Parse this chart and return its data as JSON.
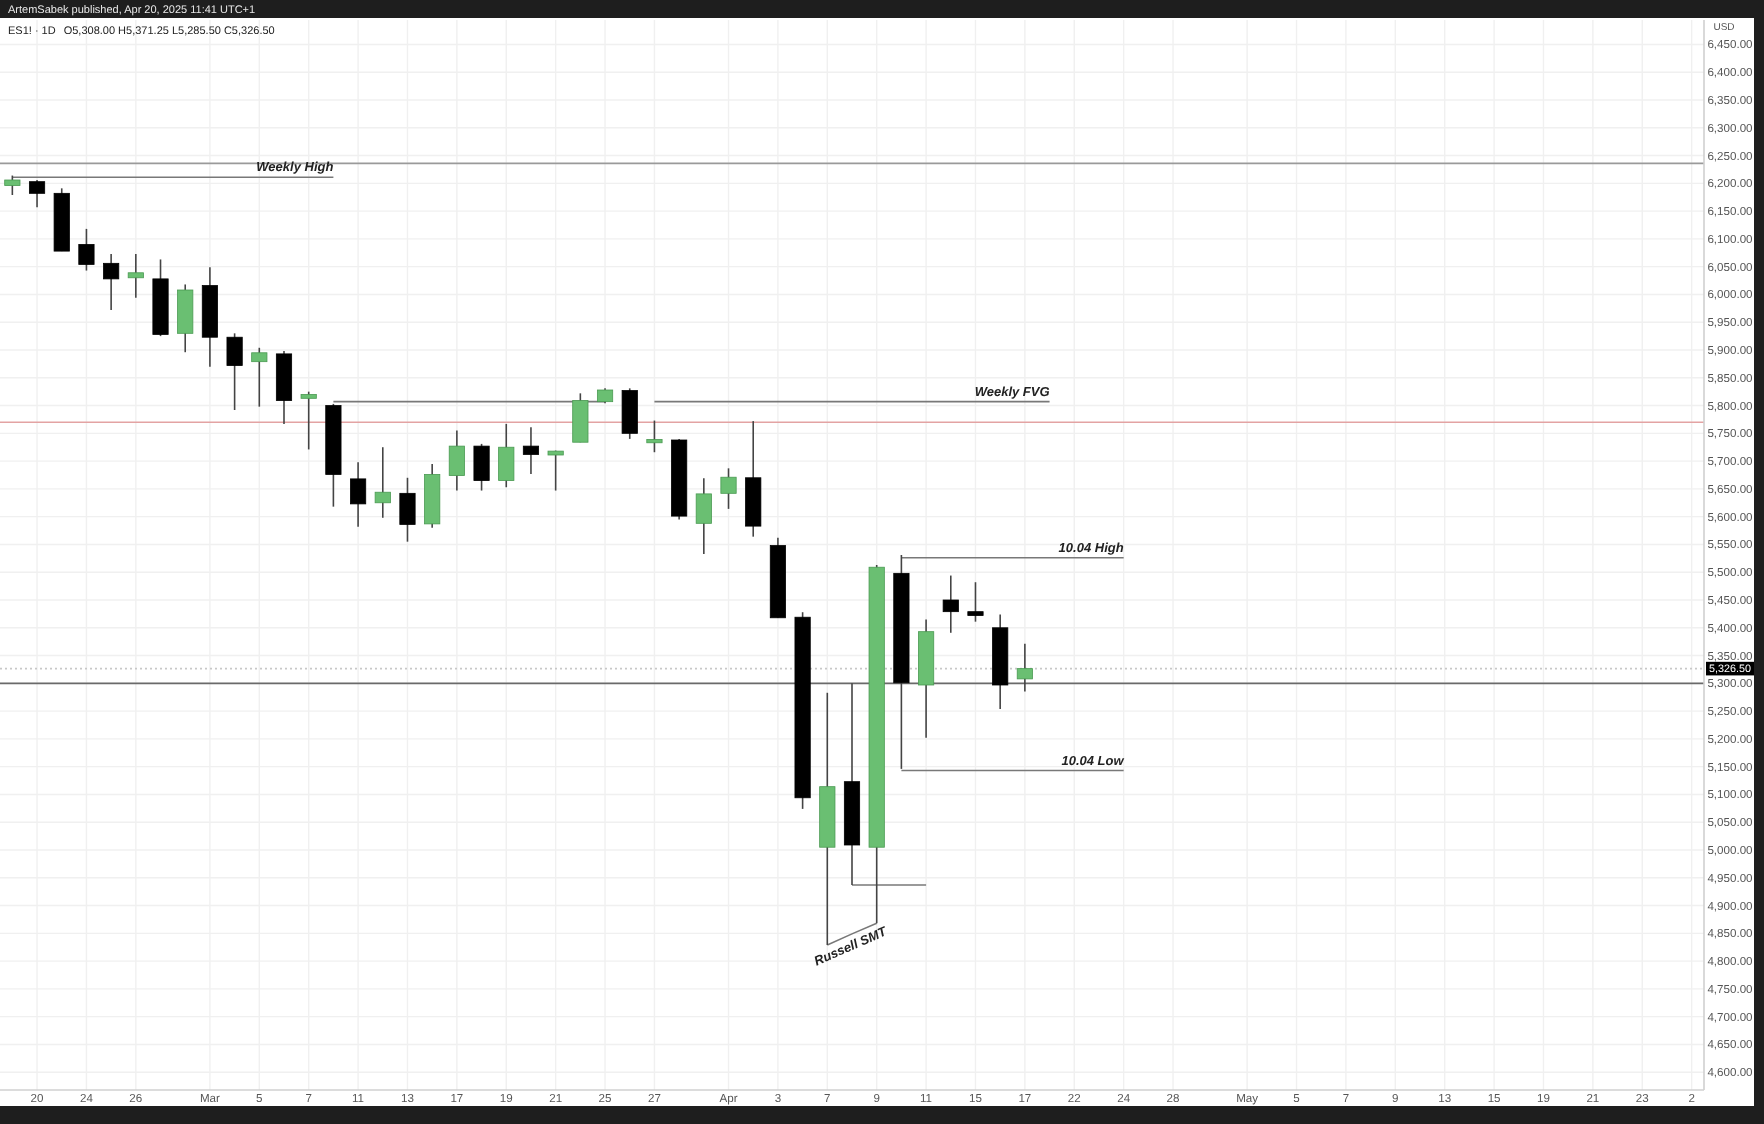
{
  "chart_data": {
    "type": "candlestick",
    "title": "ES1! · 1D",
    "subtitle": "O5,308.00 H5,371.25 L5,285.50 C5,326.50",
    "ylabel": "USD",
    "annotations": [
      "ArtemSabek published, Apr 20, 2025 11:41 UTC+1"
    ],
    "categories": [
      null,
      "20",
      null,
      "24",
      null,
      "26",
      null,
      null,
      "Mar",
      null,
      "5",
      null,
      "7",
      null,
      "11",
      null,
      "13",
      null,
      "17",
      null,
      "19",
      null,
      "21",
      null,
      "25",
      null,
      "27",
      null,
      null,
      "Apr",
      null,
      "3",
      null,
      "7",
      null,
      "9",
      null,
      "11",
      null,
      "15",
      null,
      "17",
      null,
      "22",
      null,
      "24",
      null,
      "28",
      null,
      null,
      "May",
      null,
      "5",
      null,
      "7",
      null,
      "9",
      null,
      "13",
      null,
      "15",
      null,
      "19",
      null,
      "21",
      null,
      "23",
      null,
      "2"
    ],
    "ohlc": [
      [
        6196,
        6214,
        6179,
        6206
      ],
      [
        6203,
        6206,
        6157,
        6182
      ],
      [
        6182,
        6191,
        6078,
        6078
      ],
      [
        6090,
        6118,
        6043,
        6054
      ],
      [
        6056,
        6073,
        5972,
        6028
      ],
      [
        6030,
        6073,
        5994,
        6039
      ],
      [
        6028,
        6063,
        5925,
        5928
      ],
      [
        5930,
        6018,
        5896,
        6008
      ],
      [
        6016,
        6049,
        5870,
        5923
      ],
      [
        5923,
        5930,
        5792,
        5872
      ],
      [
        5879,
        5904,
        5798,
        5895
      ],
      [
        5893,
        5898,
        5767,
        5809
      ],
      [
        5813,
        5825,
        5721,
        5820
      ],
      [
        5800,
        5803,
        5618,
        5676
      ],
      [
        5668,
        5698,
        5582,
        5623
      ],
      [
        5625,
        5725,
        5598,
        5644
      ],
      [
        5642,
        5670,
        5555,
        5586
      ],
      [
        5587,
        5695,
        5580,
        5676
      ],
      [
        5674,
        5755,
        5647,
        5727
      ],
      [
        5727,
        5731,
        5647,
        5665
      ],
      [
        5665,
        5767,
        5653,
        5725
      ],
      [
        5727,
        5761,
        5677,
        5712
      ],
      [
        5711,
        5719,
        5647,
        5718
      ],
      [
        5734,
        5822,
        5734,
        5809
      ],
      [
        5807,
        5831,
        5804,
        5828
      ],
      [
        5827,
        5831,
        5740,
        5750
      ],
      [
        5733,
        5773,
        5716,
        5739
      ],
      [
        5738,
        5740,
        5595,
        5601
      ],
      [
        5588,
        5669,
        5533,
        5641
      ],
      [
        5642,
        5687,
        5614,
        5671
      ],
      [
        5670,
        5772,
        5564,
        5583
      ],
      [
        5548,
        5562,
        5418,
        5418
      ],
      [
        5419,
        5428,
        5074,
        5094
      ],
      [
        5005,
        5283,
        4829,
        5114
      ],
      [
        5123,
        5300,
        4937,
        5009
      ],
      [
        5005,
        5513,
        4868,
        5509
      ],
      [
        5498,
        5531,
        5146,
        5301
      ],
      [
        5297,
        5415,
        5202,
        5393
      ],
      [
        5450,
        5494,
        5391,
        5429
      ],
      [
        5429,
        5482,
        5411,
        5422
      ],
      [
        5400,
        5424,
        5254,
        5297
      ],
      [
        5308,
        5371.25,
        5285.5,
        5326.5
      ],
      null,
      null,
      null,
      null,
      null,
      null,
      null,
      null,
      null,
      null,
      null,
      null,
      null,
      null,
      null,
      null,
      null,
      null,
      null,
      null,
      null,
      null,
      null,
      null,
      null,
      null,
      null
    ],
    "colors": [
      "#6abf72",
      "#000000",
      "#000000",
      "#000000",
      "#000000",
      "#6abf72",
      "#000000",
      "#6abf72",
      "#000000",
      "#000000",
      "#6abf72",
      "#000000",
      "#6abf72",
      "#000000",
      "#000000",
      "#6abf72",
      "#000000",
      "#6abf72",
      "#6abf72",
      "#000000",
      "#6abf72",
      "#000000",
      "#6abf72",
      "#6abf72",
      "#6abf72",
      "#000000",
      "#6abf72",
      "#000000",
      "#6abf72",
      "#6abf72",
      "#000000",
      "#000000",
      "#000000",
      "#6abf72",
      "#000000",
      "#6abf72",
      "#000000",
      "#6abf72",
      "#000000",
      "#000000",
      "#000000",
      "#6abf72",
      null,
      null,
      null,
      null,
      null,
      null,
      null,
      null,
      null,
      null,
      null,
      null,
      null,
      null,
      null,
      null,
      null,
      null,
      null,
      null,
      null,
      null,
      null,
      null,
      null,
      null,
      null
    ],
    "series": [
      {
        "type": "line",
        "name": "Weekly High",
        "color": "#787878",
        "values": [
          6211,
          6211,
          6211,
          6211,
          6211,
          6211,
          6211,
          6211,
          6211,
          6211,
          6211,
          6211,
          6211,
          6211,
          null,
          null,
          null,
          null,
          null,
          null,
          null,
          null,
          null,
          null,
          null,
          null,
          null,
          null,
          null,
          null,
          null,
          null,
          null,
          null,
          null,
          null,
          null,
          null,
          null,
          null,
          null,
          null,
          null,
          null,
          null,
          null,
          null,
          null,
          null,
          null,
          null,
          null,
          null,
          null,
          null,
          null,
          null,
          null,
          null,
          null,
          null,
          null,
          null,
          null,
          null,
          null,
          null,
          null,
          null
        ]
      },
      {
        "type": "line",
        "name": "Weekly FVG",
        "color": "#787878",
        "values": [
          null,
          null,
          null,
          null,
          null,
          null,
          null,
          null,
          null,
          null,
          null,
          null,
          null,
          5807,
          5807,
          5807,
          5807,
          5807,
          5807,
          5807,
          5807,
          5807,
          5807,
          5807,
          5807,
          null,
          5807,
          5807,
          5807,
          5807,
          5807,
          5807,
          5807,
          5807,
          5807,
          5807,
          5807,
          5807,
          5807,
          5807,
          5807,
          5807,
          5807,
          null,
          null,
          null,
          null,
          null,
          null,
          null,
          null,
          null,
          null,
          null,
          null,
          null,
          null,
          null,
          null,
          null,
          null,
          null,
          null,
          null,
          null,
          null,
          null,
          null,
          null
        ]
      },
      {
        "type": "line",
        "name": "10.04 High",
        "color": "#787878",
        "values": [
          null,
          null,
          null,
          null,
          null,
          null,
          null,
          null,
          null,
          null,
          null,
          null,
          null,
          null,
          null,
          null,
          null,
          null,
          null,
          null,
          null,
          null,
          null,
          null,
          null,
          null,
          null,
          null,
          null,
          null,
          null,
          null,
          null,
          null,
          null,
          null,
          5526,
          5526,
          5526,
          5526,
          5526,
          5526,
          5526,
          5526,
          5526,
          5526,
          null,
          null,
          null,
          null,
          null,
          null,
          null,
          null,
          null,
          null,
          null,
          null,
          null,
          null,
          null,
          null,
          null,
          null,
          null,
          null,
          null,
          null,
          null
        ]
      },
      {
        "type": "line",
        "name": "10.04 Low",
        "color": "#787878",
        "values": [
          null,
          null,
          null,
          null,
          null,
          null,
          null,
          null,
          null,
          null,
          null,
          null,
          null,
          null,
          null,
          null,
          null,
          null,
          null,
          null,
          null,
          null,
          null,
          null,
          null,
          null,
          null,
          null,
          null,
          null,
          null,
          null,
          null,
          null,
          null,
          null,
          5143,
          5143,
          5143,
          5143,
          5143,
          5143,
          5143,
          5143,
          5143,
          5143,
          null,
          null,
          null,
          null,
          null,
          null,
          null,
          null,
          null,
          null,
          null,
          null,
          null,
          null,
          null,
          null,
          null,
          null,
          null,
          null,
          null,
          null,
          null
        ]
      },
      {
        "type": "line",
        "color": "#787878",
        "values": [
          null,
          null,
          null,
          null,
          null,
          null,
          null,
          null,
          null,
          null,
          null,
          null,
          null,
          null,
          null,
          null,
          null,
          null,
          null,
          null,
          null,
          null,
          null,
          null,
          null,
          null,
          null,
          null,
          null,
          null,
          null,
          null,
          null,
          null,
          4937,
          4937,
          4937,
          4937,
          null,
          null,
          null,
          null,
          null,
          null,
          null,
          null,
          null,
          null,
          null,
          null,
          null,
          null,
          null,
          null,
          null,
          null,
          null,
          null,
          null,
          null,
          null,
          null,
          null,
          null,
          null,
          null,
          null,
          null,
          null
        ]
      },
      {
        "type": "line",
        "name": "Russell SMT",
        "color": "#787878",
        "values": [
          null,
          null,
          null,
          null,
          null,
          null,
          null,
          null,
          null,
          null,
          null,
          null,
          null,
          null,
          null,
          null,
          null,
          null,
          null,
          null,
          null,
          null,
          null,
          null,
          null,
          null,
          null,
          null,
          null,
          null,
          null,
          null,
          null,
          4829,
          4849,
          4868,
          null,
          null,
          null,
          null,
          null,
          null,
          null,
          null,
          null,
          null,
          null,
          null,
          null,
          null,
          null,
          null,
          null,
          null,
          null,
          null,
          null,
          null,
          null,
          null,
          null,
          null,
          null,
          null,
          null,
          null,
          null,
          null,
          null
        ]
      }
    ],
    "ref_lines": [
      {
        "axis": "y",
        "value": 6236,
        "color": "#9a9a9a"
      },
      {
        "axis": "y",
        "value": 5770,
        "color": "#e3a3a3"
      },
      {
        "axis": "y",
        "value": 5300,
        "color": "#6a6a6a"
      },
      {
        "axis": "y",
        "value": 5326.5,
        "label": "5,326.50",
        "color": "#c8c8c8",
        "line_style": "dotted"
      }
    ],
    "ylim": [
      4568,
      6494
    ],
    "yticks": [
      {
        "value": 4600,
        "label": "4,600.00"
      },
      {
        "value": 4650,
        "label": "4,650.00"
      },
      {
        "value": 4700,
        "label": "4,700.00"
      },
      {
        "value": 4750,
        "label": "4,750.00"
      },
      {
        "value": 4800,
        "label": "4,800.00"
      },
      {
        "value": 4850,
        "label": "4,850.00"
      },
      {
        "value": 4900,
        "label": "4,900.00"
      },
      {
        "value": 4950,
        "label": "4,950.00"
      },
      {
        "value": 5000,
        "label": "5,000.00"
      },
      {
        "value": 5050,
        "label": "5,050.00"
      },
      {
        "value": 5100,
        "label": "5,100.00"
      },
      {
        "value": 5150,
        "label": "5,150.00"
      },
      {
        "value": 5200,
        "label": "5,200.00"
      },
      {
        "value": 5250,
        "label": "5,250.00"
      },
      {
        "value": 5300,
        "label": "5,300.00"
      },
      {
        "value": 5350,
        "label": "5,350.00"
      },
      {
        "value": 5400,
        "label": "5,400.00"
      },
      {
        "value": 5450,
        "label": "5,450.00"
      },
      {
        "value": 5500,
        "label": "5,500.00"
      },
      {
        "value": 5550,
        "label": "5,550.00"
      },
      {
        "value": 5600,
        "label": "5,600.00"
      },
      {
        "value": 5650,
        "label": "5,650.00"
      },
      {
        "value": 5700,
        "label": "5,700.00"
      },
      {
        "value": 5750,
        "label": "5,750.00"
      },
      {
        "value": 5800,
        "label": "5,800.00"
      },
      {
        "value": 5850,
        "label": "5,850.00"
      },
      {
        "value": 5900,
        "label": "5,900.00"
      },
      {
        "value": 5950,
        "label": "5,950.00"
      },
      {
        "value": 6000,
        "label": "6,000.00"
      },
      {
        "value": 6050,
        "label": "6,050.00"
      },
      {
        "value": 6100,
        "label": "6,100.00"
      },
      {
        "value": 6150,
        "label": "6,150.00"
      },
      {
        "value": 6200,
        "label": "6,200.00"
      },
      {
        "value": 6250,
        "label": "6,250.00"
      },
      {
        "value": 6300,
        "label": "6,300.00"
      },
      {
        "value": 6350,
        "label": "6,350.00"
      },
      {
        "value": 6400,
        "label": "6,400.00"
      },
      {
        "value": 6450,
        "label": "6,450.00"
      }
    ],
    "grid": true
  }
}
